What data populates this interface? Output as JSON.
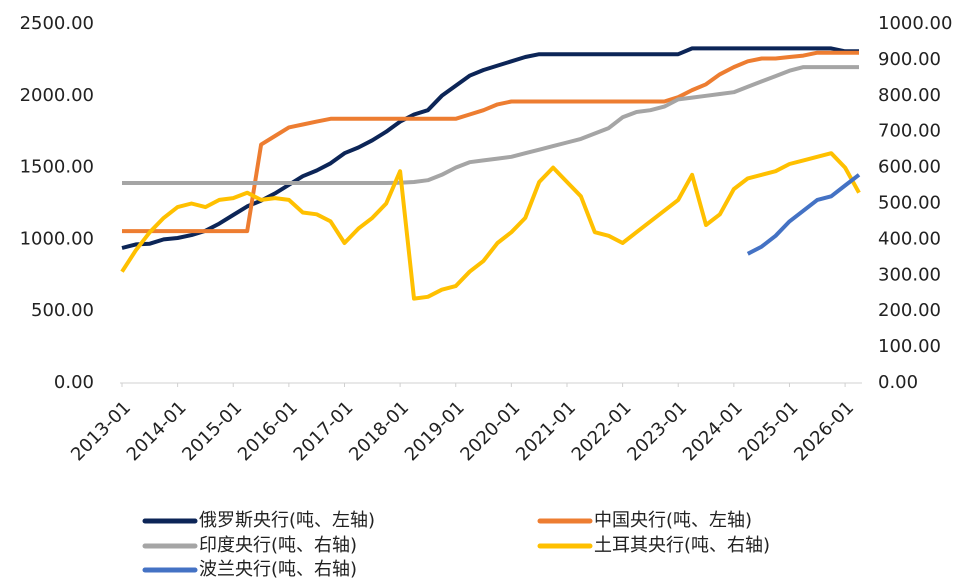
{
  "chart_data": {
    "type": "line",
    "x": [
      "2013-01",
      "2013-04",
      "2013-07",
      "2013-10",
      "2014-01",
      "2014-04",
      "2014-07",
      "2014-10",
      "2015-01",
      "2015-04",
      "2015-07",
      "2015-10",
      "2016-01",
      "2016-04",
      "2016-07",
      "2016-10",
      "2017-01",
      "2017-04",
      "2017-07",
      "2017-10",
      "2018-01",
      "2018-04",
      "2018-07",
      "2018-10",
      "2019-01",
      "2019-04",
      "2019-07",
      "2019-10",
      "2020-01",
      "2020-04",
      "2020-07",
      "2020-10",
      "2021-01",
      "2021-04",
      "2021-07",
      "2021-10",
      "2022-01",
      "2022-04",
      "2022-07",
      "2022-10",
      "2023-01",
      "2023-04",
      "2023-07",
      "2023-10",
      "2024-01",
      "2024-04",
      "2024-07",
      "2024-10",
      "2025-01",
      "2025-04",
      "2025-07",
      "2025-10",
      "2026-01",
      "2026-04"
    ],
    "xlim": [
      "2013-01",
      "2026-04"
    ],
    "xticks": [
      "2013-01",
      "2014-01",
      "2015-01",
      "2016-01",
      "2017-01",
      "2018-01",
      "2019-01",
      "2020-01",
      "2021-01",
      "2022-01",
      "2023-01",
      "2024-01",
      "2025-01",
      "2026-01"
    ],
    "ylim": [
      0,
      2500
    ],
    "yticks": [
      {
        "value": 0,
        "label": "0.00"
      },
      {
        "value": 500,
        "label": "500.00"
      },
      {
        "value": 1000,
        "label": "1000.00"
      },
      {
        "value": 1500,
        "label": "1500.00"
      },
      {
        "value": 2000,
        "label": "2000.00"
      },
      {
        "value": 2500,
        "label": "2500.00"
      }
    ],
    "y2lim": [
      0,
      1000
    ],
    "y2ticks": [
      {
        "value": 0,
        "label": "0.00"
      },
      {
        "value": 100,
        "label": "100.00"
      },
      {
        "value": 200,
        "label": "200.00"
      },
      {
        "value": 300,
        "label": "300.00"
      },
      {
        "value": 400,
        "label": "400.00"
      },
      {
        "value": 500,
        "label": "500.00"
      },
      {
        "value": 600,
        "label": "600.00"
      },
      {
        "value": 700,
        "label": "700.00"
      },
      {
        "value": 800,
        "label": "800.00"
      },
      {
        "value": 900,
        "label": "900.00"
      },
      {
        "value": 1000,
        "label": "1000.00"
      }
    ],
    "grid": false,
    "legend": "bottom",
    "series": [
      {
        "name": "俄罗斯央行(吨、左轴)",
        "color": "#0c2557",
        "axis": "y",
        "values": [
          940,
          965,
          970,
          1000,
          1010,
          1030,
          1060,
          1110,
          1170,
          1230,
          1270,
          1320,
          1380,
          1440,
          1480,
          1530,
          1600,
          1640,
          1690,
          1750,
          1820,
          1870,
          1900,
          2000,
          2070,
          2140,
          2180,
          2210,
          2240,
          2270,
          2290,
          2290,
          2290,
          2290,
          2290,
          2290,
          2290,
          2290,
          2290,
          2290,
          2290,
          2330,
          2330,
          2330,
          2330,
          2330,
          2330,
          2330,
          2330,
          2330,
          2330,
          2330,
          2310,
          2310
        ]
      },
      {
        "name": "中国央行(吨、左轴)",
        "color": "#ed7d31",
        "axis": "y",
        "values": [
          1058,
          1058,
          1058,
          1058,
          1058,
          1058,
          1058,
          1058,
          1058,
          1058,
          1660,
          1720,
          1780,
          1800,
          1820,
          1840,
          1840,
          1840,
          1840,
          1840,
          1840,
          1840,
          1840,
          1840,
          1840,
          1870,
          1900,
          1940,
          1960,
          1960,
          1960,
          1960,
          1960,
          1960,
          1960,
          1960,
          1960,
          1960,
          1960,
          1960,
          1990,
          2040,
          2080,
          2150,
          2200,
          2240,
          2260,
          2260,
          2270,
          2280,
          2300,
          2300,
          2300,
          2300
        ]
      },
      {
        "name": "印度央行(吨、右轴)",
        "color": "#a5a5a5",
        "axis": "y2",
        "values": [
          557,
          557,
          557,
          557,
          557,
          557,
          557,
          557,
          557,
          557,
          557,
          557,
          557,
          557,
          557,
          557,
          557,
          557,
          557,
          557,
          558,
          560,
          565,
          580,
          600,
          615,
          620,
          625,
          630,
          640,
          650,
          660,
          670,
          680,
          695,
          710,
          740,
          755,
          760,
          770,
          790,
          795,
          800,
          805,
          810,
          825,
          840,
          855,
          870,
          880,
          880,
          880,
          880,
          880
        ]
      },
      {
        "name": "土耳其央行(吨、右轴)",
        "color": "#ffc000",
        "axis": "y2",
        "values": [
          310,
          370,
          420,
          460,
          490,
          500,
          490,
          510,
          515,
          530,
          510,
          515,
          510,
          475,
          470,
          450,
          390,
          430,
          460,
          500,
          590,
          235,
          240,
          260,
          270,
          310,
          340,
          390,
          420,
          460,
          560,
          600,
          560,
          520,
          420,
          410,
          390,
          420,
          450,
          480,
          510,
          580,
          440,
          470,
          540,
          570,
          580,
          590,
          610,
          620,
          630,
          640,
          600,
          530
        ]
      },
      {
        "name": "波兰央行(吨、右轴)",
        "color": "#4472c4",
        "axis": "y2",
        "values": [
          null,
          null,
          null,
          null,
          null,
          null,
          null,
          null,
          null,
          null,
          null,
          null,
          null,
          null,
          null,
          null,
          null,
          null,
          null,
          null,
          null,
          null,
          null,
          null,
          null,
          null,
          null,
          null,
          null,
          null,
          null,
          null,
          null,
          null,
          null,
          null,
          null,
          null,
          null,
          null,
          null,
          null,
          null,
          null,
          null,
          360,
          380,
          410,
          450,
          480,
          510,
          520,
          550,
          580
        ]
      }
    ]
  }
}
